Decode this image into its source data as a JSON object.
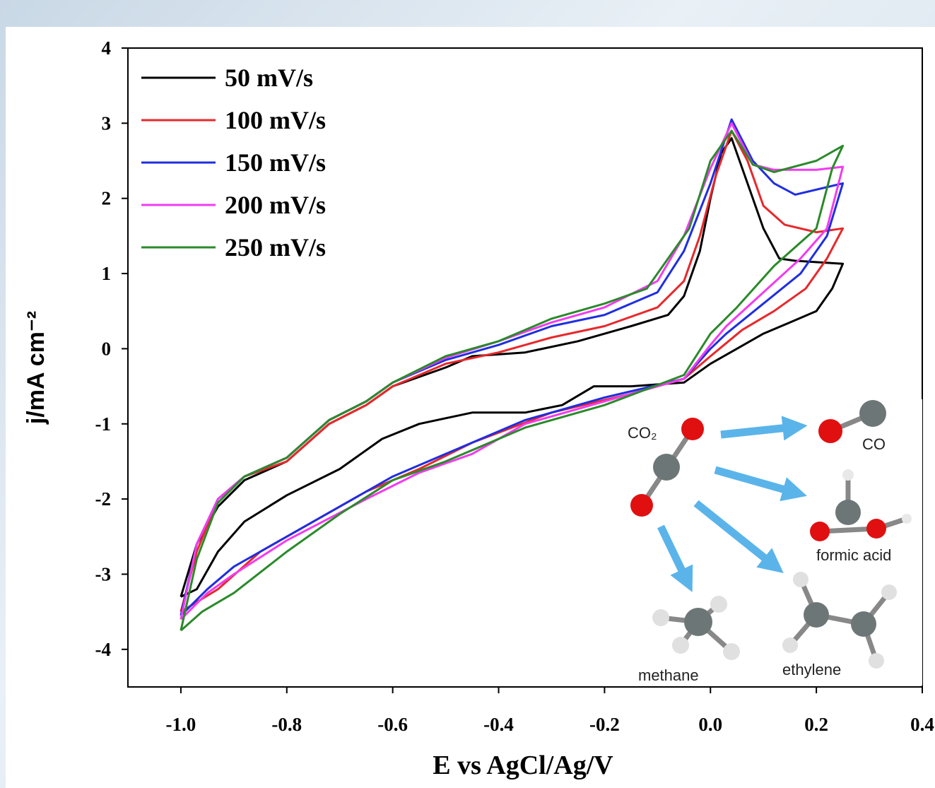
{
  "chart_data": {
    "type": "line",
    "x_label": "E vs AgCl/Ag/V",
    "y_label": "j/mA cm⁻²",
    "xlim": [
      -1.1,
      0.4
    ],
    "ylim": [
      -4.5,
      4
    ],
    "xticks": [
      {
        "value": -1,
        "label": "-1.0"
      },
      -0.8,
      -0.6,
      -0.4,
      -0.2,
      {
        "value": 0,
        "label": "0.0"
      },
      0.2,
      0.4
    ],
    "yticks": [
      -4,
      -3,
      -2,
      -1,
      0,
      1,
      2,
      3,
      4
    ],
    "legend": "top-left",
    "series": [
      {
        "name": "50 mV/s",
        "color": "#000000",
        "x": [
          -1.0,
          -0.97,
          -0.93,
          -0.88,
          -0.8,
          -0.72,
          -0.65,
          -0.6,
          -0.5,
          -0.45,
          -0.35,
          -0.25,
          -0.15,
          -0.08,
          -0.05,
          -0.02,
          0.0,
          0.02,
          0.04,
          0.07,
          0.1,
          0.13,
          0.16,
          0.25,
          0.23,
          0.2,
          0.15,
          0.1,
          0.05,
          0.0,
          -0.05,
          -0.15,
          -0.22,
          -0.28,
          -0.35,
          -0.45,
          -0.55,
          -0.62,
          -0.7,
          -0.8,
          -0.88,
          -0.93,
          -0.97,
          -1.0
        ],
        "values": [
          -3.3,
          -2.6,
          -2.1,
          -1.75,
          -1.5,
          -1.0,
          -0.75,
          -0.5,
          -0.25,
          -0.1,
          -0.05,
          0.1,
          0.3,
          0.45,
          0.7,
          1.3,
          2.0,
          2.6,
          2.8,
          2.2,
          1.6,
          1.2,
          1.17,
          1.13,
          0.8,
          0.5,
          0.35,
          0.2,
          0.0,
          -0.2,
          -0.45,
          -0.5,
          -0.5,
          -0.75,
          -0.85,
          -0.85,
          -1.0,
          -1.2,
          -1.6,
          -1.95,
          -2.3,
          -2.7,
          -3.2,
          -3.3
        ]
      },
      {
        "name": "100 mV/s",
        "color": "#e8282b",
        "x": [
          -1.0,
          -0.97,
          -0.93,
          -0.88,
          -0.8,
          -0.72,
          -0.65,
          -0.6,
          -0.5,
          -0.4,
          -0.3,
          -0.2,
          -0.1,
          -0.05,
          -0.02,
          0.01,
          0.04,
          0.07,
          0.1,
          0.14,
          0.2,
          0.25,
          0.22,
          0.18,
          0.12,
          0.06,
          0.0,
          -0.05,
          -0.15,
          -0.3,
          -0.45,
          -0.55,
          -0.65,
          -0.75,
          -0.85,
          -0.93,
          -1.0
        ],
        "values": [
          -3.5,
          -2.7,
          -2.0,
          -1.7,
          -1.5,
          -1.0,
          -0.75,
          -0.5,
          -0.2,
          -0.05,
          0.15,
          0.3,
          0.55,
          0.9,
          1.5,
          2.3,
          2.9,
          2.5,
          1.9,
          1.65,
          1.55,
          1.6,
          1.2,
          0.8,
          0.5,
          0.25,
          -0.1,
          -0.4,
          -0.6,
          -0.85,
          -1.25,
          -1.6,
          -1.9,
          -2.3,
          -2.7,
          -3.2,
          -3.5
        ]
      },
      {
        "name": "150 mV/s",
        "color": "#1f2ee0",
        "x": [
          -1.0,
          -0.97,
          -0.93,
          -0.88,
          -0.8,
          -0.72,
          -0.65,
          -0.6,
          -0.5,
          -0.4,
          -0.3,
          -0.2,
          -0.1,
          -0.05,
          0.0,
          0.04,
          0.08,
          0.12,
          0.16,
          0.25,
          0.22,
          0.17,
          0.1,
          0.03,
          0.0,
          -0.05,
          -0.2,
          -0.35,
          -0.5,
          -0.6,
          -0.7,
          -0.8,
          -0.9,
          -0.95,
          -1.0
        ],
        "values": [
          -3.55,
          -2.6,
          -2.0,
          -1.7,
          -1.45,
          -0.95,
          -0.7,
          -0.45,
          -0.15,
          0.05,
          0.3,
          0.45,
          0.75,
          1.3,
          2.2,
          3.05,
          2.5,
          2.2,
          2.05,
          2.2,
          1.5,
          1.0,
          0.6,
          0.2,
          0.0,
          -0.4,
          -0.65,
          -0.95,
          -1.4,
          -1.7,
          -2.1,
          -2.5,
          -2.9,
          -3.2,
          -3.55
        ]
      },
      {
        "name": "200 mV/s",
        "color": "#f23bf0",
        "x": [
          -1.0,
          -0.97,
          -0.93,
          -0.88,
          -0.8,
          -0.72,
          -0.65,
          -0.6,
          -0.5,
          -0.4,
          -0.3,
          -0.2,
          -0.1,
          -0.05,
          0.0,
          0.04,
          0.08,
          0.12,
          0.2,
          0.25,
          0.22,
          0.17,
          0.1,
          0.03,
          0.0,
          -0.05,
          -0.2,
          -0.35,
          -0.45,
          -0.55,
          -0.65,
          -0.8,
          -0.9,
          -0.95,
          -1.0
        ],
        "values": [
          -3.6,
          -2.6,
          -2.0,
          -1.7,
          -1.45,
          -0.95,
          -0.7,
          -0.45,
          -0.12,
          0.1,
          0.35,
          0.55,
          0.9,
          1.5,
          2.4,
          3.0,
          2.45,
          2.38,
          2.38,
          2.42,
          1.6,
          1.2,
          0.75,
          0.3,
          0.05,
          -0.4,
          -0.7,
          -1.0,
          -1.4,
          -1.65,
          -2.0,
          -2.55,
          -3.0,
          -3.25,
          -3.6
        ]
      },
      {
        "name": "250 mV/s",
        "color": "#2a8a2a",
        "x": [
          -1.0,
          -0.97,
          -0.93,
          -0.88,
          -0.8,
          -0.72,
          -0.65,
          -0.6,
          -0.5,
          -0.4,
          -0.3,
          -0.2,
          -0.12,
          -0.08,
          -0.04,
          0.0,
          0.04,
          0.08,
          0.12,
          0.2,
          0.25,
          0.23,
          0.2,
          0.12,
          0.05,
          0.0,
          -0.05,
          -0.2,
          -0.35,
          -0.5,
          -0.6,
          -0.7,
          -0.8,
          -0.9,
          -0.96,
          -1.0
        ],
        "values": [
          -3.75,
          -2.8,
          -2.05,
          -1.7,
          -1.45,
          -0.95,
          -0.7,
          -0.45,
          -0.1,
          0.1,
          0.4,
          0.6,
          0.8,
          1.2,
          1.6,
          2.5,
          2.9,
          2.45,
          2.35,
          2.5,
          2.7,
          2.4,
          1.6,
          1.1,
          0.55,
          0.2,
          -0.35,
          -0.75,
          -1.05,
          -1.5,
          -1.75,
          -2.2,
          -2.7,
          -3.25,
          -3.5,
          -3.75
        ]
      }
    ]
  },
  "inset": {
    "reactant": "CO₂",
    "products": [
      "CO",
      "formic acid",
      "methane",
      "ethylene"
    ]
  }
}
